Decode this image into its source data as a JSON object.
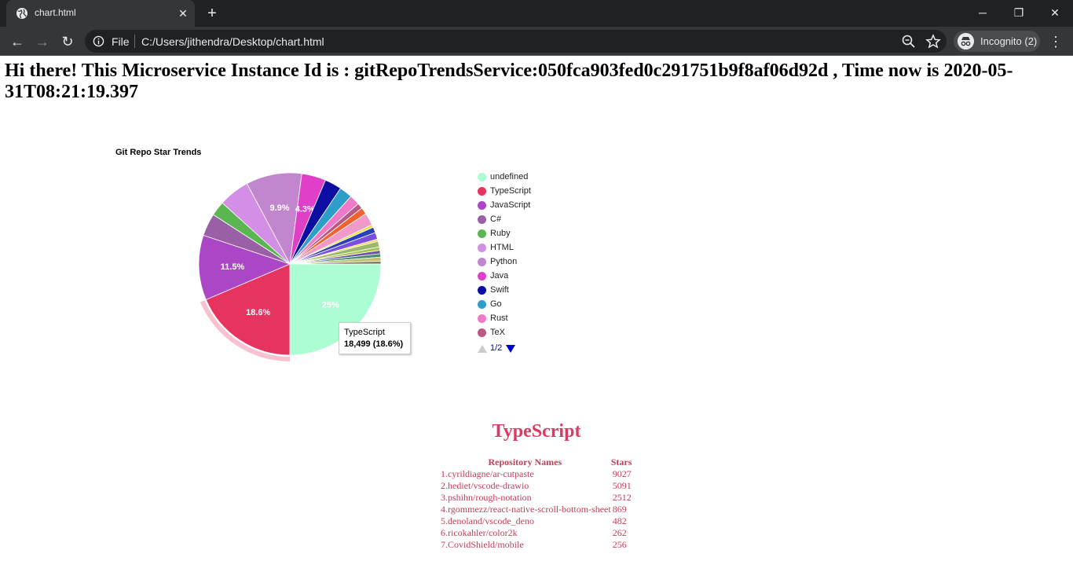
{
  "browser": {
    "tab_title": "chart.html",
    "omnibox_scheme": "File",
    "omnibox_url": "C:/Users/jithendra/Desktop/chart.html",
    "incognito_label": "Incognito (2)"
  },
  "page": {
    "heading": "Hi there! This Microservice Instance Id is : gitRepoTrendsService:050fca903fed0c291751b9f8af06d92d , Time now is 2020-05-31T08:21:19.397"
  },
  "chart_data": {
    "type": "pie",
    "title": "Git Repo Star Trends",
    "slices": [
      {
        "label": "undefined",
        "percent": 25,
        "color": "#adfdd4",
        "shown_label": "25%"
      },
      {
        "label": "TypeScript",
        "percent": 18.6,
        "value": 18499,
        "color": "#e7335f",
        "shown_label": "18.6%",
        "highlighted": true
      },
      {
        "label": "JavaScript",
        "percent": 11.5,
        "color": "#ab47c7",
        "shown_label": "11.5%"
      },
      {
        "label": "C#",
        "percent": 4.0,
        "color": "#9a60a5",
        "shown_label": ""
      },
      {
        "label": "Ruby",
        "percent": 2.6,
        "color": "#5bb652",
        "shown_label": ""
      },
      {
        "label": "HTML",
        "percent": 5.5,
        "color": "#d38ee6",
        "shown_label": ""
      },
      {
        "label": "Python",
        "percent": 9.9,
        "color": "#c286cf",
        "shown_label": "9.9%"
      },
      {
        "label": "Java",
        "percent": 4.3,
        "color": "#e040c8",
        "shown_label": "4.3%"
      },
      {
        "label": "Swift",
        "percent": 3.0,
        "color": "#0c0ea2",
        "shown_label": ""
      },
      {
        "label": "Go",
        "percent": 2.3,
        "color": "#2c9ec7",
        "shown_label": ""
      },
      {
        "label": "Rust",
        "percent": 1.8,
        "color": "#ef7ac7",
        "shown_label": ""
      },
      {
        "label": "TeX",
        "percent": 1.0,
        "color": "#b95a82",
        "shown_label": ""
      },
      {
        "label": "",
        "percent": 1.2,
        "color": "#f0632e",
        "shown_label": ""
      },
      {
        "label": "",
        "percent": 2.2,
        "color": "#ef9ac9",
        "shown_label": ""
      },
      {
        "label": "",
        "percent": 0.5,
        "color": "#e6e645",
        "shown_label": ""
      },
      {
        "label": "",
        "percent": 1.0,
        "color": "#2a3ec0",
        "shown_label": ""
      },
      {
        "label": "",
        "percent": 1.2,
        "color": "#7a4fe0",
        "shown_label": ""
      },
      {
        "label": "",
        "percent": 0.4,
        "color": "#f2d84a",
        "shown_label": ""
      },
      {
        "label": "",
        "percent": 1.0,
        "color": "#9ab96a",
        "shown_label": ""
      },
      {
        "label": "",
        "percent": 0.6,
        "color": "#a7c34a",
        "shown_label": ""
      },
      {
        "label": "",
        "percent": 0.6,
        "color": "#6e52a8",
        "shown_label": ""
      },
      {
        "label": "",
        "percent": 0.6,
        "color": "#3f8f6f",
        "shown_label": ""
      },
      {
        "label": "",
        "percent": 0.7,
        "color": "#c0c070",
        "shown_label": ""
      },
      {
        "label": "",
        "percent": 0.5,
        "color": "#8a7a60",
        "shown_label": ""
      }
    ],
    "legend_position": "right",
    "legend_page": "1/2",
    "tooltip": {
      "name": "TypeScript",
      "value": "18,499 (18.6%)"
    }
  },
  "detail": {
    "language": "TypeScript",
    "col_name_header": "Repository Names",
    "col_stars_header": "Stars",
    "rows": [
      {
        "name": "1.cyrildiagne/ar-cutpaste",
        "stars": "9027"
      },
      {
        "name": "2.hediet/vscode-drawio",
        "stars": "5091"
      },
      {
        "name": "3.pshihn/rough-notation",
        "stars": "2512"
      },
      {
        "name": "4.rgommezz/react-native-scroll-bottom-sheet",
        "stars": "869"
      },
      {
        "name": "5.denoland/vscode_deno",
        "stars": "482"
      },
      {
        "name": "6.ricokahler/color2k",
        "stars": "262"
      },
      {
        "name": "7.CovidShield/mobile",
        "stars": "256"
      }
    ]
  },
  "colors": {
    "accent_heading": "#dc3a60",
    "table_text": "#c0405a"
  }
}
